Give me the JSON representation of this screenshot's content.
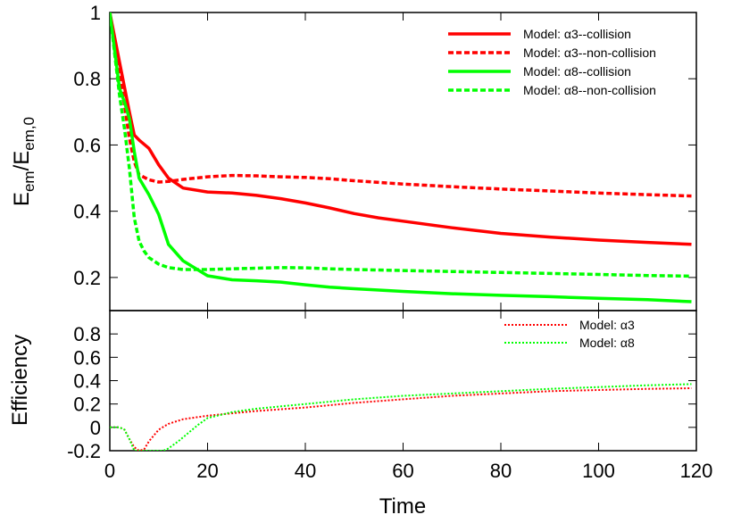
{
  "chart_data": [
    {
      "type": "line",
      "title": "",
      "ylabel": "E_em/E_em,0",
      "ylabel_main": "E",
      "ylabel_sub1": "em",
      "ylabel_slash": "/E",
      "ylabel_sub2": "em,0",
      "xlim": [
        0,
        120
      ],
      "ylim": [
        0.1,
        1.0
      ],
      "yticks": [
        0.2,
        0.4,
        0.6,
        0.8,
        1
      ],
      "ytick_labels": [
        "0.2",
        "0.4",
        "0.6",
        "0.8",
        "1"
      ],
      "grid": false,
      "legend_position": "top-right",
      "series": [
        {
          "name": "Model: α3--collision",
          "color": "#ff0000",
          "dash": "solid",
          "x": [
            0,
            2,
            4,
            5,
            6,
            8,
            10,
            12,
            15,
            20,
            25,
            30,
            35,
            40,
            45,
            50,
            55,
            60,
            70,
            80,
            90,
            100,
            110,
            119
          ],
          "y": [
            1.0,
            0.85,
            0.7,
            0.63,
            0.615,
            0.59,
            0.54,
            0.5,
            0.47,
            0.458,
            0.455,
            0.448,
            0.438,
            0.425,
            0.41,
            0.393,
            0.38,
            0.37,
            0.35,
            0.333,
            0.322,
            0.313,
            0.306,
            0.3
          ]
        },
        {
          "name": "Model: α3--non-collision",
          "color": "#ff0000",
          "dash": "dashed",
          "x": [
            0,
            2,
            4,
            5,
            6,
            8,
            10,
            12,
            15,
            20,
            25,
            30,
            35,
            40,
            45,
            50,
            60,
            70,
            80,
            90,
            100,
            110,
            119
          ],
          "y": [
            1.0,
            0.82,
            0.62,
            0.55,
            0.51,
            0.495,
            0.488,
            0.49,
            0.496,
            0.504,
            0.508,
            0.507,
            0.504,
            0.502,
            0.498,
            0.492,
            0.482,
            0.474,
            0.467,
            0.461,
            0.455,
            0.45,
            0.446
          ]
        },
        {
          "name": "Model: α8--collision",
          "color": "#00ff00",
          "dash": "solid",
          "x": [
            0,
            2,
            3,
            4,
            5,
            6,
            8,
            10,
            12,
            15,
            20,
            25,
            30,
            35,
            40,
            45,
            50,
            60,
            70,
            80,
            90,
            100,
            110,
            119
          ],
          "y": [
            1.0,
            0.77,
            0.73,
            0.68,
            0.58,
            0.5,
            0.45,
            0.39,
            0.3,
            0.25,
            0.205,
            0.193,
            0.19,
            0.186,
            0.178,
            0.171,
            0.166,
            0.158,
            0.151,
            0.146,
            0.142,
            0.137,
            0.133,
            0.127
          ]
        },
        {
          "name": "Model: α8--non-collision",
          "color": "#00ff00",
          "dash": "dashed",
          "x": [
            0,
            2,
            3,
            4,
            5,
            6,
            7,
            8,
            10,
            12,
            15,
            20,
            25,
            30,
            35,
            40,
            45,
            50,
            60,
            70,
            80,
            90,
            100,
            110,
            119
          ],
          "y": [
            1.0,
            0.75,
            0.65,
            0.53,
            0.38,
            0.31,
            0.28,
            0.26,
            0.24,
            0.23,
            0.224,
            0.224,
            0.226,
            0.228,
            0.23,
            0.229,
            0.226,
            0.224,
            0.221,
            0.218,
            0.215,
            0.212,
            0.209,
            0.206,
            0.204
          ]
        }
      ]
    },
    {
      "type": "line",
      "title": "",
      "xlabel": "Time",
      "ylabel": "Efficiency",
      "xlim": [
        0,
        120
      ],
      "ylim": [
        -0.2,
        1.0
      ],
      "xticks": [
        0,
        20,
        40,
        60,
        80,
        100,
        120
      ],
      "xtick_labels": [
        "0",
        "20",
        "40",
        "60",
        "80",
        "100",
        "120"
      ],
      "yticks": [
        -0.2,
        0,
        0.2,
        0.4,
        0.6,
        0.8
      ],
      "ytick_labels": [
        "-0.2",
        "0",
        "0.2",
        "0.4",
        "0.6",
        "0.8"
      ],
      "grid": false,
      "legend_position": "top-right",
      "series": [
        {
          "name": "Model: α3",
          "color": "#ff0000",
          "dash": "dotted",
          "x": [
            0,
            2,
            3,
            4,
            5,
            6,
            7,
            8,
            10,
            12,
            15,
            20,
            25,
            30,
            40,
            50,
            60,
            70,
            80,
            90,
            100,
            110,
            119
          ],
          "y": [
            0.0,
            0.0,
            -0.02,
            -0.1,
            -0.17,
            -0.2,
            -0.19,
            -0.12,
            -0.02,
            0.03,
            0.07,
            0.1,
            0.12,
            0.14,
            0.17,
            0.21,
            0.24,
            0.27,
            0.29,
            0.31,
            0.32,
            0.33,
            0.335
          ]
        },
        {
          "name": "Model: α8",
          "color": "#00ff00",
          "dash": "dotted",
          "x": [
            0,
            2,
            3,
            4,
            5,
            6,
            7,
            8,
            10,
            11,
            12,
            14,
            16,
            18,
            20,
            25,
            30,
            40,
            50,
            60,
            70,
            80,
            90,
            100,
            110,
            119
          ],
          "y": [
            0.0,
            0.0,
            -0.02,
            -0.1,
            -0.2,
            -0.2,
            -0.2,
            -0.2,
            -0.2,
            -0.2,
            -0.18,
            -0.12,
            -0.05,
            0.02,
            0.08,
            0.13,
            0.16,
            0.2,
            0.24,
            0.27,
            0.29,
            0.31,
            0.33,
            0.345,
            0.36,
            0.37
          ]
        }
      ]
    }
  ]
}
